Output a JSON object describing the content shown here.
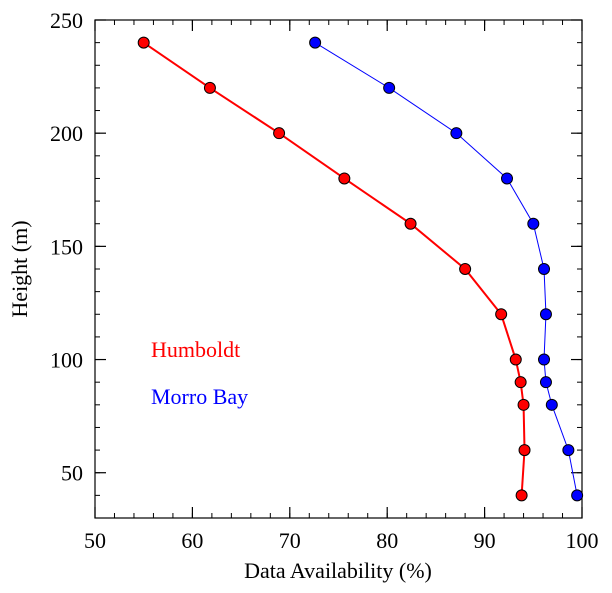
{
  "chart_data": {
    "type": "line",
    "title": "",
    "xlabel": "Data Availability (%)",
    "ylabel": "Height (m)",
    "xlim": [
      50,
      100
    ],
    "ylim": [
      30,
      250
    ],
    "xticks": [
      50,
      60,
      70,
      80,
      90,
      100
    ],
    "yticks": [
      50,
      100,
      150,
      200,
      250
    ],
    "grid": false,
    "legend": "inline-left",
    "series": [
      {
        "name": "Humboldt",
        "color": "#ff0000",
        "x": [
          55.0,
          61.8,
          68.9,
          75.6,
          82.4,
          88.0,
          91.7,
          93.2,
          93.7,
          94.0,
          94.1,
          93.8
        ],
        "y": [
          240,
          220,
          200,
          180,
          160,
          140,
          120,
          100,
          90,
          80,
          60,
          40
        ]
      },
      {
        "name": "Morro Bay",
        "color": "#0000ff",
        "x": [
          72.6,
          80.2,
          87.1,
          92.3,
          95.0,
          96.1,
          96.3,
          96.1,
          96.3,
          96.9,
          98.6,
          99.5
        ],
        "y": [
          240,
          220,
          200,
          180,
          160,
          140,
          120,
          100,
          90,
          80,
          60,
          40
        ]
      }
    ]
  }
}
